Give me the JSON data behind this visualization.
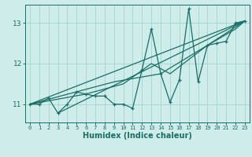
{
  "xlabel": "Humidex (Indice chaleur)",
  "bg_color": "#ceecea",
  "grid_color": "#a8d8d4",
  "line_color": "#1a6e64",
  "xlim": [
    -0.5,
    23.5
  ],
  "ylim": [
    10.55,
    13.45
  ],
  "yticks": [
    11,
    12,
    13
  ],
  "xticks": [
    0,
    1,
    2,
    3,
    4,
    5,
    6,
    7,
    8,
    9,
    10,
    11,
    12,
    13,
    14,
    15,
    16,
    17,
    18,
    19,
    20,
    21,
    22,
    23
  ],
  "zigzag_x": [
    0,
    1,
    2,
    3,
    4,
    5,
    6,
    7,
    8,
    9,
    10,
    11,
    12,
    13,
    14,
    15,
    16,
    17,
    18,
    19,
    20,
    21,
    22,
    23
  ],
  "zigzag_y": [
    11.0,
    11.0,
    11.15,
    10.78,
    11.0,
    11.3,
    11.25,
    11.2,
    11.2,
    11.0,
    11.0,
    10.9,
    11.85,
    12.85,
    11.75,
    11.05,
    11.6,
    13.35,
    11.55,
    12.45,
    12.5,
    12.55,
    13.0,
    13.05
  ],
  "line2_x": [
    0,
    23
  ],
  "line2_y": [
    11.0,
    13.05
  ],
  "line3_x": [
    3,
    23
  ],
  "line3_y": [
    10.78,
    13.05
  ],
  "line4_x": [
    0,
    9,
    14,
    19,
    23
  ],
  "line4_y": [
    11.0,
    11.55,
    11.75,
    12.45,
    13.05
  ],
  "line5_x": [
    0,
    6,
    10,
    13,
    15,
    19,
    22,
    23
  ],
  "line5_y": [
    11.0,
    11.25,
    11.5,
    12.0,
    11.75,
    12.45,
    12.85,
    13.05
  ]
}
